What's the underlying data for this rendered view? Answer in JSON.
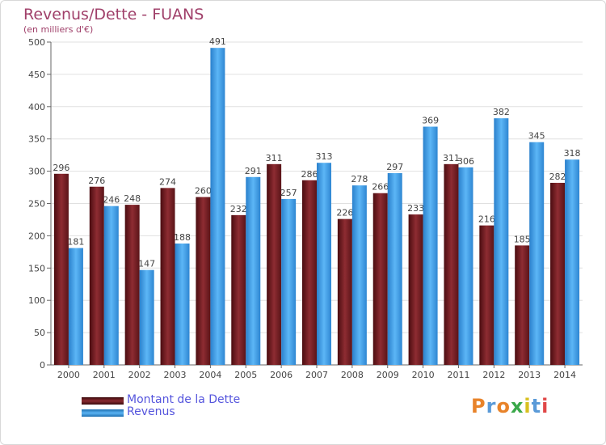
{
  "chart_data": {
    "type": "bar",
    "title": "Revenus/Dette - FUANS",
    "subtitle": "(en milliers d'€)",
    "categories": [
      "2000",
      "2001",
      "2002",
      "2003",
      "2004",
      "2005",
      "2006",
      "2007",
      "2008",
      "2009",
      "2010",
      "2011",
      "2012",
      "2013",
      "2014"
    ],
    "series": [
      {
        "name": "Montant de la Dette",
        "values": [
          296,
          276,
          248,
          274,
          260,
          232,
          311,
          286,
          226,
          266,
          233,
          311,
          216,
          185,
          282
        ],
        "color": "#7a1f24"
      },
      {
        "name": "Revenus",
        "values": [
          181,
          246,
          147,
          188,
          491,
          291,
          257,
          313,
          278,
          297,
          369,
          306,
          382,
          345,
          318
        ],
        "color": "#3f9ee8"
      }
    ],
    "ylim": [
      0,
      500
    ],
    "yticks": [
      0,
      50,
      100,
      150,
      200,
      250,
      300,
      350,
      400,
      450,
      500
    ],
    "grid": true,
    "legend": "bottom-left"
  },
  "logo": {
    "text": "Proxiti",
    "colors": [
      "#e8832a",
      "#5a9ad8",
      "#e8832a",
      "#3aa84a",
      "#d8c020",
      "#5a9ad8",
      "#e04848"
    ]
  }
}
